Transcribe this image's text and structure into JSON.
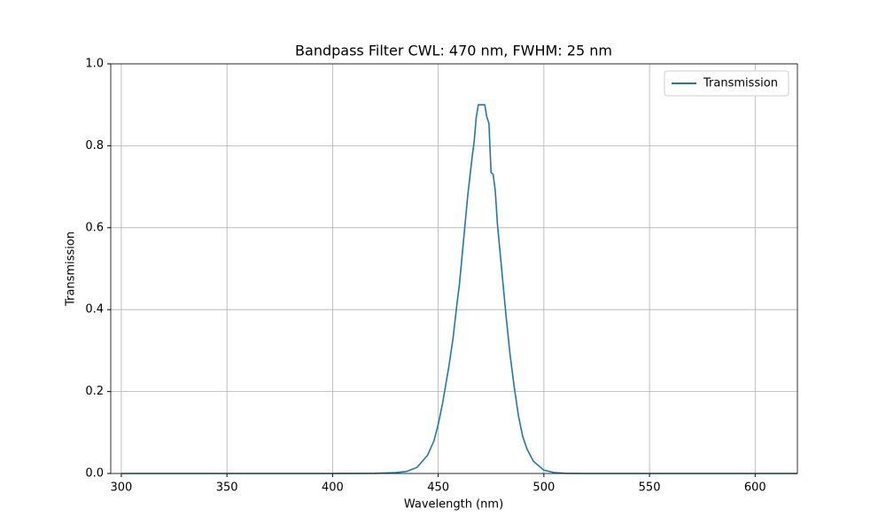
{
  "chart_data": {
    "type": "line",
    "title": "Bandpass Filter CWL: 470 nm, FWHM: 25 nm",
    "xlabel": "Wavelength (nm)",
    "ylabel": "Transmission",
    "x": [
      300,
      400,
      420,
      430,
      435,
      440,
      445,
      448,
      450,
      452,
      455,
      457,
      459,
      460,
      462,
      464,
      466,
      467,
      468,
      469,
      472,
      473,
      474,
      475,
      476,
      477,
      478,
      480,
      482,
      484,
      486,
      488,
      490,
      492,
      495,
      500,
      505,
      510,
      520,
      620
    ],
    "series": [
      {
        "name": "Transmission",
        "color": "#1f77b4",
        "values": [
          0,
          0,
          0.0005,
          0.002,
          0.005,
          0.015,
          0.045,
          0.08,
          0.12,
          0.17,
          0.26,
          0.33,
          0.42,
          0.46,
          0.57,
          0.68,
          0.77,
          0.81,
          0.87,
          0.9,
          0.9,
          0.87,
          0.855,
          0.735,
          0.73,
          0.69,
          0.61,
          0.5,
          0.39,
          0.29,
          0.21,
          0.14,
          0.09,
          0.06,
          0.03,
          0.008,
          0.002,
          0.0005,
          0,
          0
        ]
      }
    ],
    "xlim": [
      295,
      620
    ],
    "ylim": [
      0,
      1
    ],
    "xticks": [
      300,
      350,
      400,
      450,
      500,
      550,
      600
    ],
    "yticks": [
      {
        "value": 0,
        "label": "0.0"
      },
      {
        "value": 0.2,
        "label": "0.2"
      },
      {
        "value": 0.4,
        "label": "0.4"
      },
      {
        "value": 0.6,
        "label": "0.6"
      },
      {
        "value": 0.8,
        "label": "0.8"
      },
      {
        "value": 1,
        "label": "1.0"
      }
    ],
    "grid": true,
    "legend": "upper right"
  }
}
